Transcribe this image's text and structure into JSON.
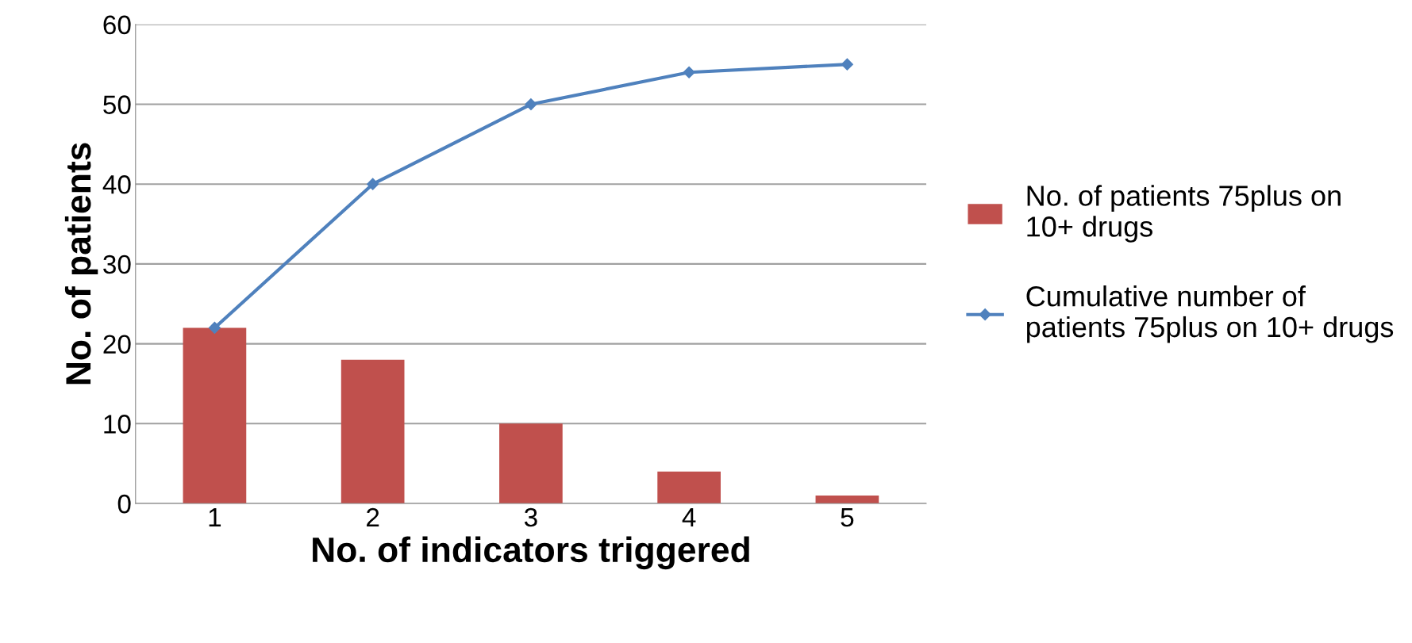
{
  "chart_data": {
    "type": "bar",
    "xlabel": "No. of indicators triggered",
    "ylabel": "No. of patients",
    "categories": [
      "1",
      "2",
      "3",
      "4",
      "5"
    ],
    "series": [
      {
        "name": "No. of patients 75plus on 10+ drugs",
        "color": "#c0504d",
        "values": [
          22,
          18,
          10,
          4,
          1
        ]
      },
      {
        "name": "Cumulative number of patients 75plus on 10+ drugs",
        "color": "#4f81bd",
        "type": "line",
        "marker": "diamond",
        "values": [
          22,
          40,
          50,
          54,
          55
        ]
      }
    ],
    "ylim": [
      0,
      60
    ],
    "yticks": [
      0,
      10,
      20,
      30,
      40,
      50,
      60
    ],
    "grid": "y",
    "legend": "right"
  }
}
